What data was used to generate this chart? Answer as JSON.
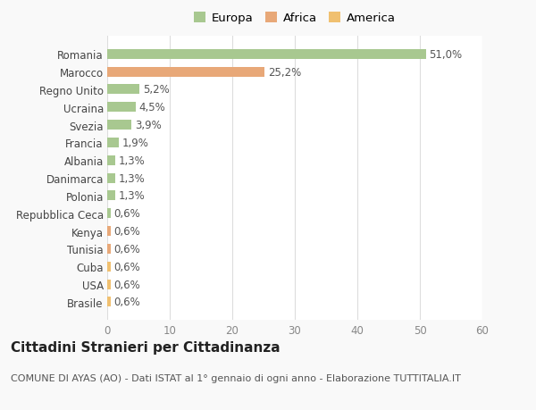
{
  "categories": [
    "Brasile",
    "USA",
    "Cuba",
    "Tunisia",
    "Kenya",
    "Repubblica Ceca",
    "Polonia",
    "Danimarca",
    "Albania",
    "Francia",
    "Svezia",
    "Ucraina",
    "Regno Unito",
    "Marocco",
    "Romania"
  ],
  "values": [
    0.6,
    0.6,
    0.6,
    0.6,
    0.6,
    0.6,
    1.3,
    1.3,
    1.3,
    1.9,
    3.9,
    4.5,
    5.2,
    25.2,
    51.0
  ],
  "labels": [
    "0,6%",
    "0,6%",
    "0,6%",
    "0,6%",
    "0,6%",
    "0,6%",
    "1,3%",
    "1,3%",
    "1,3%",
    "1,9%",
    "3,9%",
    "4,5%",
    "5,2%",
    "25,2%",
    "51,0%"
  ],
  "colors": [
    "#f0c070",
    "#f0c070",
    "#f0c070",
    "#e8a878",
    "#e8a878",
    "#a8c890",
    "#a8c890",
    "#a8c890",
    "#a8c890",
    "#a8c890",
    "#a8c890",
    "#a8c890",
    "#a8c890",
    "#e8a878",
    "#a8c890"
  ],
  "legend_labels": [
    "Europa",
    "Africa",
    "America"
  ],
  "legend_colors": [
    "#a8c890",
    "#e8a878",
    "#f0c070"
  ],
  "title": "Cittadini Stranieri per Cittadinanza",
  "subtitle": "COMUNE DI AYAS (AO) - Dati ISTAT al 1° gennaio di ogni anno - Elaborazione TUTTITALIA.IT",
  "xlim": [
    0,
    60
  ],
  "xticks": [
    0,
    10,
    20,
    30,
    40,
    50,
    60
  ],
  "background_color": "#f9f9f9",
  "plot_bg_color": "#ffffff",
  "grid_color": "#dddddd",
  "title_fontsize": 11,
  "subtitle_fontsize": 8,
  "tick_fontsize": 8.5,
  "label_fontsize": 8.5,
  "legend_fontsize": 9.5
}
